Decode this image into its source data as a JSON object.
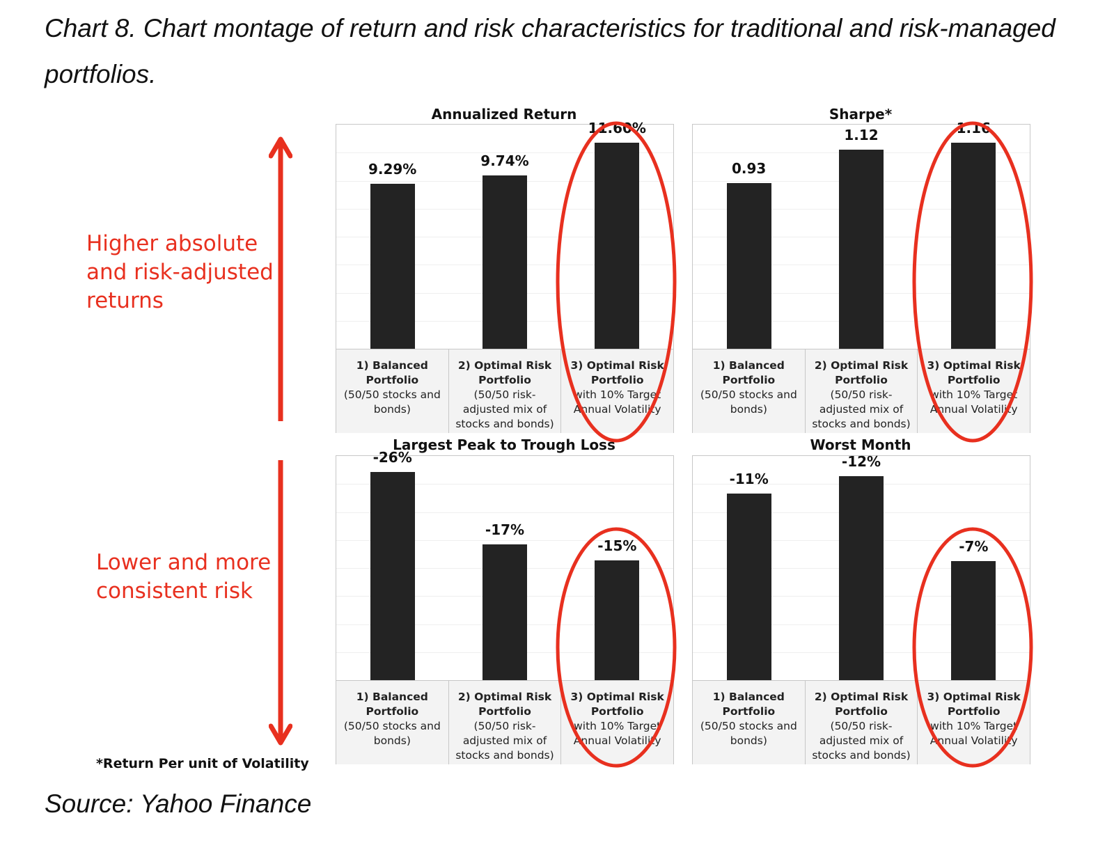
{
  "caption": "Chart 8. Chart montage of return and risk characteristics for traditional and risk-managed portfolios.",
  "source": "Source: Yahoo Finance",
  "annotations": {
    "upper": "Higher absolute\nand risk-adjusted\nreturns",
    "lower": "Lower and more\nconsistent risk",
    "footnote": "*Return Per unit of Volatility"
  },
  "colors": {
    "bar": "#232323",
    "highlight": "#e8301f",
    "axis_area": "#f3f3f3"
  },
  "categories": [
    {
      "l1": "1) Balanced",
      "l2": "Portfolio",
      "l3": "(50/50 stocks and bonds)"
    },
    {
      "l1": "2) Optimal Risk",
      "l2": "Portfolio",
      "l3": "(50/50 risk-adjusted mix of stocks and bonds)"
    },
    {
      "l1": "3) Optimal Risk",
      "l2": "Portfolio",
      "l3": "with 10% Target Annual Volatility"
    }
  ],
  "chart_data": [
    {
      "type": "bar",
      "title": "Annualized Return",
      "categories": [
        "1) Balanced Portfolio (50/50 stocks and bonds)",
        "2) Optimal Risk Portfolio (50/50 risk-adjusted mix of stocks and bonds)",
        "3) Optimal Risk Portfolio with 10% Target Annual Volatility"
      ],
      "values": [
        9.29,
        9.74,
        11.6
      ],
      "labels": [
        "9.29%",
        "9.74%",
        "11.60%"
      ],
      "unit": "%",
      "highlight_index": 2
    },
    {
      "type": "bar",
      "title": "Sharpe*",
      "categories": [
        "1) Balanced Portfolio (50/50 stocks and bonds)",
        "2) Optimal Risk Portfolio (50/50 risk-adjusted mix of stocks and bonds)",
        "3) Optimal Risk Portfolio with 10% Target Annual Volatility"
      ],
      "values": [
        0.93,
        1.12,
        1.16
      ],
      "labels": [
        "0.93",
        "1.12",
        "1.16"
      ],
      "highlight_index": 2
    },
    {
      "type": "bar",
      "title": "Largest Peak to Trough Loss",
      "categories": [
        "1) Balanced Portfolio (50/50 stocks and bonds)",
        "2) Optimal Risk Portfolio (50/50 risk-adjusted mix of stocks and bonds)",
        "3) Optimal Risk Portfolio with 10% Target Annual Volatility"
      ],
      "values": [
        -26,
        -17,
        -15
      ],
      "labels": [
        "-26%",
        "-17%",
        "-15%"
      ],
      "unit": "%",
      "highlight_index": 2
    },
    {
      "type": "bar",
      "title": "Worst Month",
      "categories": [
        "1) Balanced Portfolio (50/50 stocks and bonds)",
        "2) Optimal Risk Portfolio (50/50 risk-adjusted mix of stocks and bonds)",
        "3) Optimal Risk Portfolio with 10% Target Annual Volatility"
      ],
      "values": [
        -11,
        -12,
        -7
      ],
      "labels": [
        "-11%",
        "-12%",
        "-7%"
      ],
      "unit": "%",
      "highlight_index": 2
    }
  ]
}
